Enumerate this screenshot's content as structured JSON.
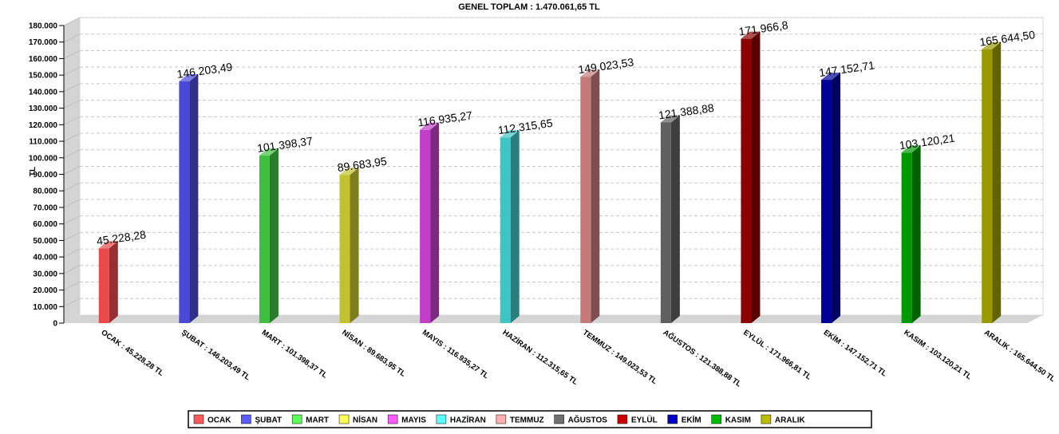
{
  "chart_data": {
    "type": "bar",
    "title": "GENEL TOPLAM : 1.470.061,65 TL",
    "ylabel": "TL",
    "xlabel": "",
    "ylim": [
      0,
      180000
    ],
    "ytick_step": 10000,
    "yticks": [
      "0",
      "10.000",
      "20.000",
      "30.000",
      "40.000",
      "50.000",
      "60.000",
      "70.000",
      "80.000",
      "90.000",
      "100.000",
      "110.000",
      "120.000",
      "130.000",
      "140.000",
      "150.000",
      "160.000",
      "170.000",
      "180.000"
    ],
    "grid": true,
    "legend_position": "bottom",
    "categories": [
      "OCAK",
      "ŞUBAT",
      "MART",
      "NİSAN",
      "MAYIS",
      "HAZİRAN",
      "TEMMUZ",
      "AĞUSTOS",
      "EYLÜL",
      "EKİM",
      "KASIM",
      "ARALIK"
    ],
    "values": [
      45228.28,
      146203.49,
      101398.37,
      89683.95,
      116935.27,
      112315.65,
      149023.53,
      121388.88,
      171966.81,
      147152.71,
      103120.21,
      165644.5
    ],
    "value_labels": [
      "45.228,28",
      "146.203,49",
      "101.398,37",
      "89.683,95",
      "116.935,27",
      "112.315,65",
      "149.023,53",
      "121.388,88",
      "171.966,8",
      "147.152,71",
      "103.120,21",
      "165.644,50"
    ],
    "tick_labels": [
      "OCAK : 45.228,28 TL",
      "ŞUBAT : 146.203,49 TL",
      "MART : 101.398,37 TL",
      "NİSAN : 89.683,95 TL",
      "MAYIS : 116.935,27 TL",
      "HAZİRAN : 112.315,65 TL",
      "TEMMUZ : 149.023,53 TL",
      "AĞUSTOS : 121.388,88 TL",
      "EYLÜL : 171.966,81 TL",
      "EKİM : 147.152,71 TL",
      "KASIM : 103.120,21 TL",
      "ARALIK : 165.644,50 TL"
    ],
    "colors": [
      "#e8494a",
      "#4a4ad6",
      "#3fbf3f",
      "#c2c230",
      "#c03fc8",
      "#3fc4c4",
      "#c47a7a",
      "#606060",
      "#8b0000",
      "#000099",
      "#009900",
      "#999900"
    ],
    "legend_colors": [
      "#ff5a5a",
      "#5a5aff",
      "#5aff5a",
      "#ffff5a",
      "#ff5aff",
      "#5affff",
      "#ffb0b0",
      "#707070",
      "#cc0000",
      "#0000cc",
      "#00bb00",
      "#bbbb00"
    ]
  }
}
